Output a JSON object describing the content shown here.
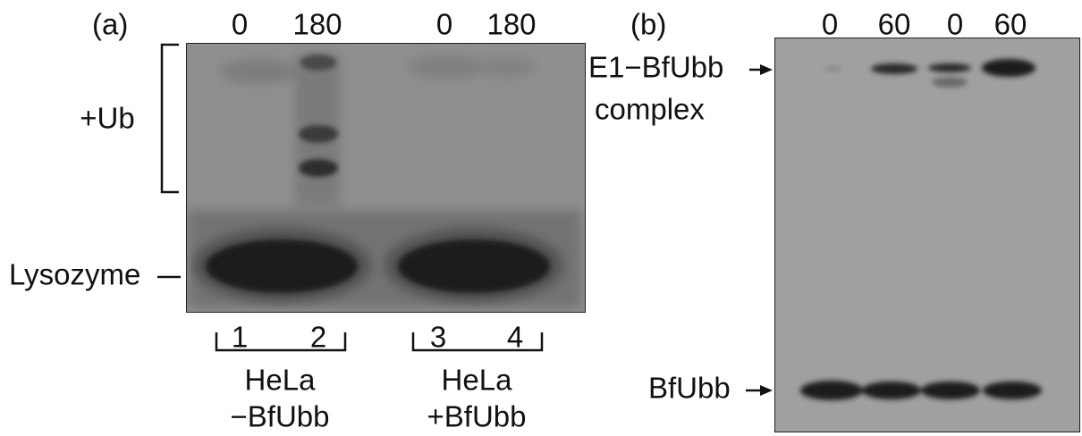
{
  "panel_a": {
    "label": "(a)",
    "time_labels": [
      "0",
      "180",
      "0",
      "180"
    ],
    "bracket_label": "+Ub",
    "marker_label": "Lysozyme",
    "lane_numbers": [
      "1",
      "2",
      "3",
      "4"
    ],
    "groups": [
      {
        "line1": "HeLa",
        "line2": "−BfUbb"
      },
      {
        "line1": "HeLa",
        "line2": "+BfUbb"
      }
    ]
  },
  "panel_b": {
    "label": "(b)",
    "time_labels": [
      "0",
      "60",
      "0",
      "60"
    ],
    "upper_band_label": [
      "E1−BfUbb",
      "complex"
    ],
    "lower_band_label": "BfUbb"
  }
}
